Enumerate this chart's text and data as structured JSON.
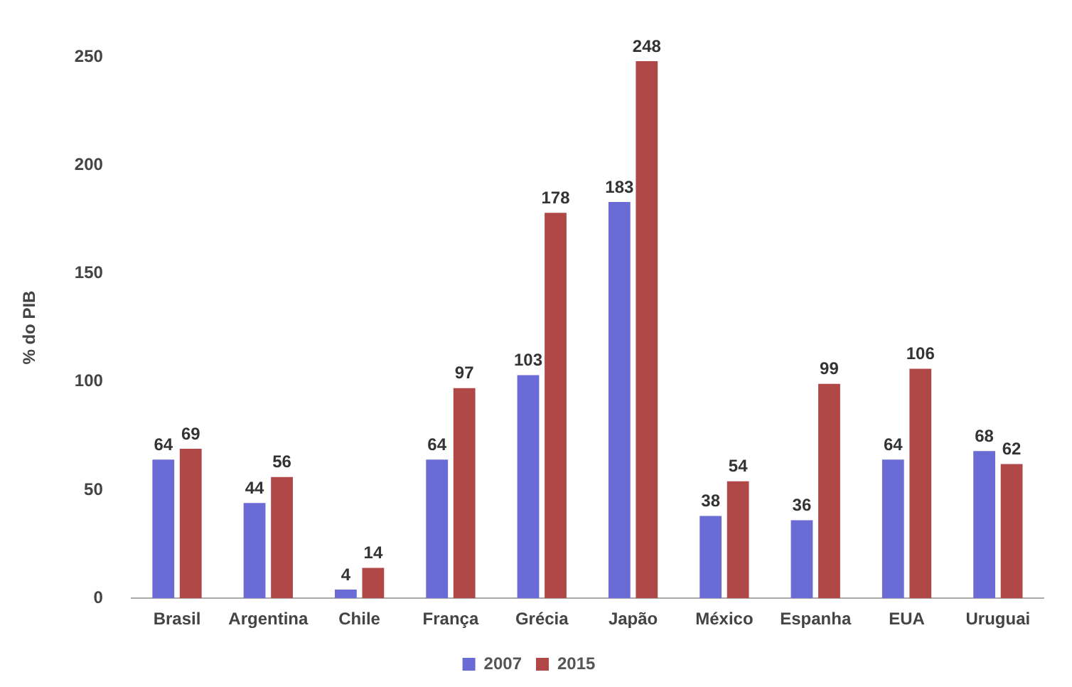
{
  "chart_data": {
    "type": "bar",
    "ylabel": "% do PIB",
    "categories": [
      "Brasil",
      "Argentina",
      "Chile",
      "França",
      "Grécia",
      "Japão",
      "México",
      "Espanha",
      "EUA",
      "Uruguai"
    ],
    "series": [
      {
        "name": "2007",
        "color": "#6b6bd6",
        "values": [
          64,
          44,
          4,
          64,
          103,
          183,
          38,
          36,
          64,
          68
        ]
      },
      {
        "name": "2015",
        "color": "#b04848",
        "values": [
          69,
          56,
          14,
          97,
          178,
          248,
          54,
          99,
          106,
          62
        ]
      }
    ],
    "ylim": [
      0,
      250
    ],
    "yticks": [
      0,
      50,
      100,
      150,
      200,
      250
    ],
    "grid": false,
    "legend": "bottom",
    "data_labels": true
  }
}
